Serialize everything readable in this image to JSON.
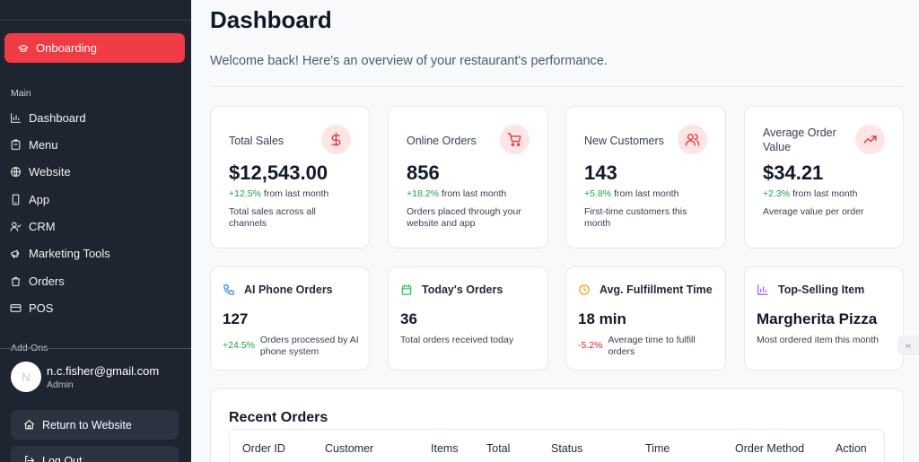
{
  "sidebar": {
    "onboarding_label": "Onboarding",
    "main_section_label": "Main",
    "items": [
      {
        "label": "Dashboard",
        "icon": "bar-chart-icon"
      },
      {
        "label": "Menu",
        "icon": "clipboard-icon"
      },
      {
        "label": "Website",
        "icon": "globe-icon"
      },
      {
        "label": "App",
        "icon": "smartphone-icon"
      },
      {
        "label": "CRM",
        "icon": "user-check-icon"
      },
      {
        "label": "Marketing Tools",
        "icon": "megaphone-icon"
      },
      {
        "label": "Orders",
        "icon": "shopping-bag-icon"
      },
      {
        "label": "POS",
        "icon": "credit-card-icon"
      }
    ],
    "addons_section_label": "Add-Ons",
    "user": {
      "avatar_initial": "N",
      "email": "n.c.fisher@gmail.com",
      "role": "Admin"
    },
    "return_label": "Return to Website",
    "logout_label": "Log Out"
  },
  "header": {
    "title": "Dashboard",
    "subtitle": "Welcome back! Here's an overview of your restaurant's performance."
  },
  "stats": [
    {
      "label": "Total Sales",
      "value": "$12,543.00",
      "change": "+12.5%",
      "change_suffix": "from last month",
      "description": "Total sales across all channels",
      "icon": "dollar-icon"
    },
    {
      "label": "Online Orders",
      "value": "856",
      "change": "+18.2%",
      "change_suffix": "from last month",
      "description": "Orders placed through your website and app",
      "icon": "cart-icon"
    },
    {
      "label": "New Customers",
      "value": "143",
      "change": "+5.8%",
      "change_suffix": "from last month",
      "description": "First-time customers this month",
      "icon": "users-icon"
    },
    {
      "label": "Average Order Value",
      "value": "$34.21",
      "change": "+2.3%",
      "change_suffix": "from last month",
      "description": "Average value per order",
      "icon": "trending-up-icon"
    }
  ],
  "mini_stats": [
    {
      "label": "AI Phone Orders",
      "value": "127",
      "change": "+24.5%",
      "description": "Orders processed by AI phone system",
      "icon": "phone-icon",
      "icon_color": "#3b82f6"
    },
    {
      "label": "Today's Orders",
      "value": "36",
      "description": "Total orders received today",
      "icon": "calendar-icon",
      "icon_color": "#22c55e"
    },
    {
      "label": "Avg. Fulfillment Time",
      "value": "18 min",
      "change": "-5.2%",
      "description": "Average time to fulfill orders",
      "icon": "clock-icon",
      "icon_color": "#f59e0b"
    },
    {
      "label": "Top-Selling Item",
      "value": "Margherita Pizza",
      "description": "Most ordered item this month",
      "icon": "bar-chart-icon",
      "icon_color": "#a855f7"
    }
  ],
  "recent_orders": {
    "title": "Recent Orders",
    "columns": [
      "Order ID",
      "Customer",
      "Items",
      "Total",
      "Status",
      "Time",
      "Order Method",
      "Action"
    ]
  },
  "widget_handle_label": "›‹",
  "colors": {
    "accent": "#ef3b44",
    "sidebar_bg": "#1f2530",
    "positive": "#16a34a",
    "negative": "#dc2626"
  }
}
